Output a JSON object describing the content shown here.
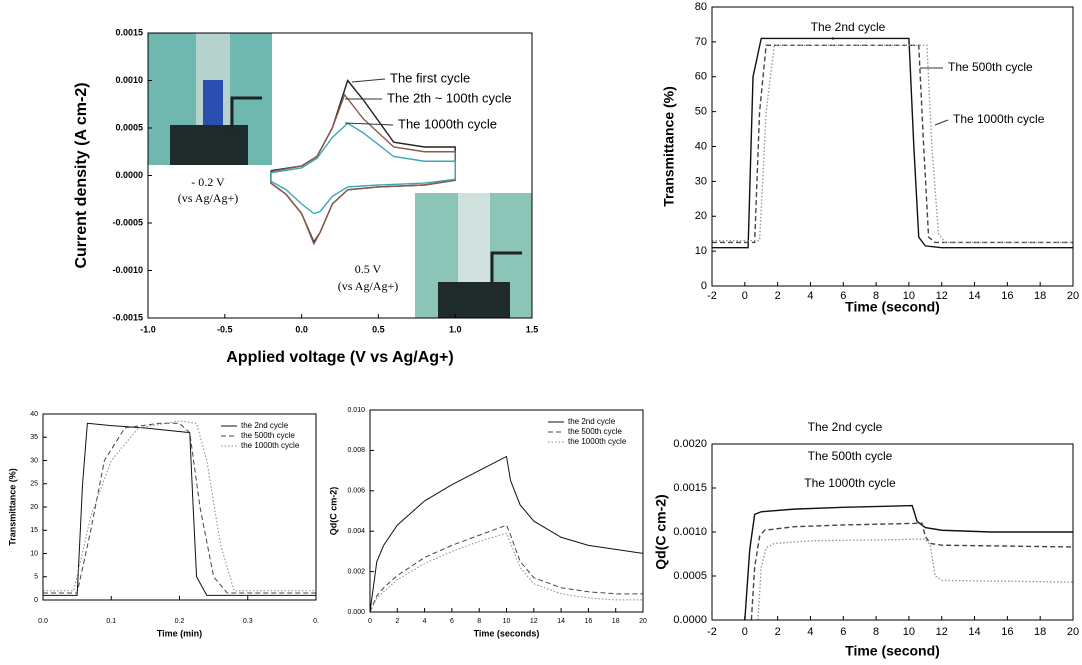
{
  "chart_data": [
    {
      "type": "line",
      "xlabel": "Applied voltage (V vs Ag/Ag+)",
      "ylabel": "Current density (A cm-2)",
      "xlim": [
        -1.0,
        1.5
      ],
      "xticks": [
        {
          "value": -1.0,
          "label": "-1.0"
        },
        {
          "value": -0.5,
          "label": "-0.5"
        },
        {
          "value": 0,
          "label": "0.0"
        },
        {
          "value": 0.5,
          "label": "0.5"
        },
        {
          "value": 1.0,
          "label": "1.0"
        },
        {
          "value": 1.5,
          "label": "1.5"
        }
      ],
      "ylim": [
        -0.0015,
        0.0015
      ],
      "yticks": [
        {
          "value": -0.0015,
          "label": "-0.0015"
        },
        {
          "value": -0.001,
          "label": "-0.0010"
        },
        {
          "value": -0.0005,
          "label": "-0.0005"
        },
        {
          "value": 0,
          "label": "0.0000"
        },
        {
          "value": 0.0005,
          "label": "0.0005"
        },
        {
          "value": 0.001,
          "label": "0.0010"
        },
        {
          "value": 0.0015,
          "label": "0.0015"
        }
      ],
      "series": [
        {
          "color": "#222222",
          "dash": "solid",
          "x": [
            -0.2,
            0.0,
            0.1,
            0.2,
            0.3,
            0.4,
            0.6,
            0.8,
            1.0,
            1.0,
            0.8,
            0.5,
            0.3,
            0.2,
            0.12,
            0.08,
            0.0,
            -0.1,
            -0.2,
            -0.2
          ],
          "values": [
            5e-05,
            0.0001,
            0.0002,
            0.0005,
            0.001,
            0.0008,
            0.00035,
            0.0003,
            0.0003,
            -5e-05,
            -0.0001,
            -0.00012,
            -0.00015,
            -0.0003,
            -0.0006,
            -0.0007,
            -0.0004,
            -0.0002,
            -8e-05,
            5e-05
          ]
        },
        {
          "color": "#8a5a4a",
          "dash": "solid",
          "x": [
            -0.2,
            0.0,
            0.1,
            0.2,
            0.28,
            0.4,
            0.6,
            0.8,
            1.0,
            1.0,
            0.8,
            0.5,
            0.3,
            0.2,
            0.12,
            0.08,
            0.0,
            -0.1,
            -0.2,
            -0.2
          ],
          "values": [
            4e-05,
            0.0001,
            0.0002,
            0.0005,
            0.00085,
            0.0006,
            0.0003,
            0.00025,
            0.00025,
            -5e-05,
            -0.0001,
            -0.00012,
            -0.00015,
            -0.0003,
            -0.0006,
            -0.00072,
            -0.0004,
            -0.0002,
            -8e-05,
            4e-05
          ]
        },
        {
          "color": "#3aa8b8",
          "dash": "solid",
          "x": [
            -0.2,
            0.0,
            0.1,
            0.2,
            0.3,
            0.4,
            0.6,
            0.8,
            1.0,
            1.0,
            0.8,
            0.5,
            0.3,
            0.2,
            0.12,
            0.08,
            0.0,
            -0.1,
            -0.2,
            -0.2
          ],
          "values": [
            3e-05,
            8e-05,
            0.00018,
            0.0004,
            0.00055,
            0.00045,
            0.0002,
            0.00015,
            0.00015,
            -4e-05,
            -8e-05,
            -0.0001,
            -0.00012,
            -0.00022,
            -0.00038,
            -0.0004,
            -0.0003,
            -0.00015,
            -6e-05,
            3e-05
          ]
        }
      ],
      "annotations": [
        {
          "text": "The first cycle",
          "color": "#000000"
        },
        {
          "text": "The 2th ~ 100th cycle",
          "color": "#000000"
        },
        {
          "text": "The 1000th cycle",
          "color": "#000000"
        },
        {
          "text": "- 0.2 V",
          "color": "#000000"
        },
        {
          "text": "(vs Ag/Ag+)",
          "color": "#000000"
        },
        {
          "text": "0.5 V",
          "color": "#000000"
        },
        {
          "text": "(vs Ag/Ag+)",
          "color": "#000000"
        }
      ]
    },
    {
      "type": "line",
      "xlabel": "Time (second)",
      "ylabel": "Transmittance (%)",
      "xlim": [
        -2,
        20
      ],
      "xticks": [
        -2,
        0,
        2,
        4,
        6,
        8,
        10,
        12,
        14,
        16,
        18,
        20
      ],
      "ylim": [
        0,
        80
      ],
      "yticks": [
        0,
        10,
        20,
        30,
        40,
        50,
        60,
        70,
        80
      ],
      "series": [
        {
          "color": "#111111",
          "dash": "solid",
          "x": [
            -2,
            0.2,
            0.5,
            1,
            5,
            10,
            10.3,
            10.6,
            11,
            12,
            20
          ],
          "values": [
            11,
            11,
            60,
            71,
            71,
            71,
            40,
            14,
            11.5,
            11,
            11
          ]
        },
        {
          "color": "#444444",
          "dash": "dashed",
          "x": [
            -2,
            0.6,
            0.9,
            1.3,
            10.6,
            10.9,
            11.2,
            11.6,
            20
          ],
          "values": [
            12.5,
            12.5,
            50,
            69,
            69,
            40,
            14,
            12.5,
            12.5
          ]
        },
        {
          "color": "#999999",
          "dash": "dotted",
          "x": [
            -2,
            0.9,
            1.3,
            1.8,
            11.1,
            11.4,
            11.8,
            12.2,
            20
          ],
          "values": [
            13,
            13,
            50,
            69,
            69,
            40,
            15,
            12.5,
            12.5
          ]
        }
      ],
      "annotations": [
        {
          "text": "The 2nd cycle",
          "color": "#000000"
        },
        {
          "text": "The 500th cycle",
          "color": "#555555"
        },
        {
          "text": "The 1000th cycle",
          "color": "#999999"
        }
      ]
    },
    {
      "type": "line",
      "xlabel": "Time (min)",
      "ylabel": "Transmittance (%)",
      "xlim": [
        0,
        0.4
      ],
      "xticks": [
        {
          "value": 0,
          "label": "0.0"
        },
        {
          "value": 0.1,
          "label": "0.1"
        },
        {
          "value": 0.2,
          "label": "0.2"
        },
        {
          "value": 0.3,
          "label": "0.3"
        },
        {
          "value": 0.4,
          "label": "0."
        }
      ],
      "ylim": [
        0,
        40
      ],
      "yticks": [
        0,
        5,
        10,
        15,
        20,
        25,
        30,
        35,
        40
      ],
      "legend": "upper right",
      "series": [
        {
          "name": "the 2nd cycle",
          "color": "#111111",
          "dash": "solid",
          "x": [
            0,
            0.05,
            0.058,
            0.065,
            0.1,
            0.15,
            0.215,
            0.22,
            0.225,
            0.24,
            0.4
          ],
          "values": [
            1,
            1,
            25,
            38,
            37.5,
            37,
            36,
            20,
            5,
            1,
            1
          ]
        },
        {
          "name": "the 500th cycle",
          "color": "#444444",
          "dash": "dashed",
          "x": [
            0,
            0.05,
            0.07,
            0.09,
            0.12,
            0.17,
            0.2,
            0.215,
            0.23,
            0.25,
            0.27,
            0.4
          ],
          "values": [
            1.5,
            1.5,
            15,
            30,
            37,
            38,
            38,
            36,
            20,
            5,
            1.5,
            1.5
          ]
        },
        {
          "name": "the 1000th cycle",
          "color": "#888888",
          "dash": "dotted",
          "x": [
            0,
            0.045,
            0.07,
            0.1,
            0.14,
            0.2,
            0.225,
            0.24,
            0.26,
            0.28,
            0.4
          ],
          "values": [
            2,
            2,
            18,
            30,
            37,
            38.5,
            38,
            30,
            12,
            2,
            2
          ]
        }
      ]
    },
    {
      "type": "line",
      "xlabel": "Time (seconds)",
      "ylabel": "Qd(C cm-2)",
      "xlim": [
        0,
        20
      ],
      "xticks": [
        0,
        2,
        4,
        6,
        8,
        10,
        12,
        14,
        16,
        18,
        20
      ],
      "ylim": [
        0,
        0.01
      ],
      "yticks": [
        {
          "value": 0,
          "label": "0.000"
        },
        {
          "value": 0.002,
          "label": "0.002"
        },
        {
          "value": 0.004,
          "label": "0.004"
        },
        {
          "value": 0.006,
          "label": "0.006"
        },
        {
          "value": 0.008,
          "label": "0.008"
        },
        {
          "value": 0.01,
          "label": "0.010"
        }
      ],
      "legend": "upper right",
      "series": [
        {
          "name": "the 2nd cycle",
          "color": "#111111",
          "dash": "solid",
          "x": [
            0,
            0.5,
            1,
            2,
            4,
            6,
            8,
            10,
            10.3,
            11,
            12,
            14,
            16,
            18,
            20
          ],
          "values": [
            0,
            0.0025,
            0.0033,
            0.0043,
            0.0055,
            0.0063,
            0.007,
            0.0077,
            0.0065,
            0.0053,
            0.0045,
            0.0037,
            0.0033,
            0.0031,
            0.0029
          ]
        },
        {
          "name": "the 500th cycle",
          "color": "#444444",
          "dash": "dashed",
          "x": [
            0,
            0.5,
            1,
            2,
            4,
            6,
            8,
            10,
            10.3,
            11,
            12,
            14,
            16,
            18,
            20
          ],
          "values": [
            0,
            0.0008,
            0.0012,
            0.0018,
            0.0027,
            0.0033,
            0.0038,
            0.0043,
            0.0038,
            0.0025,
            0.0017,
            0.0012,
            0.001,
            0.0009,
            0.0009
          ]
        },
        {
          "name": "the 1000th cycle",
          "color": "#888888",
          "dash": "dotted",
          "x": [
            0,
            0.5,
            1,
            2,
            4,
            6,
            8,
            10,
            10.3,
            11,
            12,
            14,
            16,
            18,
            20
          ],
          "values": [
            0,
            0.0007,
            0.001,
            0.0016,
            0.0024,
            0.003,
            0.0035,
            0.0039,
            0.0034,
            0.0022,
            0.0014,
            0.0009,
            0.0007,
            0.0006,
            0.0006
          ]
        }
      ]
    },
    {
      "type": "line",
      "xlabel": "Time (second)",
      "ylabel": "Qd(C cm-2)",
      "xlim": [
        -2,
        20
      ],
      "xticks": [
        -2,
        0,
        2,
        4,
        6,
        8,
        10,
        12,
        14,
        16,
        18,
        20
      ],
      "ylim": [
        0,
        0.002
      ],
      "yticks": [
        {
          "value": 0,
          "label": "0.0000"
        },
        {
          "value": 0.0005,
          "label": "0.0005"
        },
        {
          "value": 0.001,
          "label": "0.0010"
        },
        {
          "value": 0.0015,
          "label": "0.0015"
        },
        {
          "value": 0.002,
          "label": "0.0020"
        }
      ],
      "series": [
        {
          "color": "#111111",
          "dash": "solid",
          "x": [
            0,
            0.3,
            0.6,
            1,
            3,
            6,
            10.2,
            10.5,
            11,
            12,
            15,
            20
          ],
          "values": [
            0,
            0.0008,
            0.0012,
            0.00123,
            0.00126,
            0.00128,
            0.0013,
            0.00112,
            0.00105,
            0.00102,
            0.001,
            0.001
          ]
        },
        {
          "color": "#444444",
          "dash": "dashed",
          "x": [
            0.4,
            0.6,
            0.9,
            1.2,
            3,
            6,
            10.8,
            11,
            11.3,
            12,
            20
          ],
          "values": [
            0,
            0.0006,
            0.00095,
            0.00102,
            0.00106,
            0.00108,
            0.0011,
            0.00095,
            0.00087,
            0.00085,
            0.00083
          ]
        },
        {
          "color": "#999999",
          "dash": "dotted",
          "x": [
            0.8,
            1,
            1.3,
            1.8,
            4,
            8,
            11,
            11.3,
            11.6,
            12,
            20
          ],
          "values": [
            0,
            0.0006,
            0.00082,
            0.00087,
            0.0009,
            0.00091,
            0.00092,
            0.00085,
            0.0005,
            0.00045,
            0.00043
          ]
        }
      ],
      "annotations": [
        {
          "text": "The 2nd cycle",
          "color": "#000000"
        },
        {
          "text": "The 500th cycle",
          "color": "#777777"
        },
        {
          "text": "The 1000th cycle",
          "color": "#aaaaaa"
        }
      ]
    }
  ]
}
